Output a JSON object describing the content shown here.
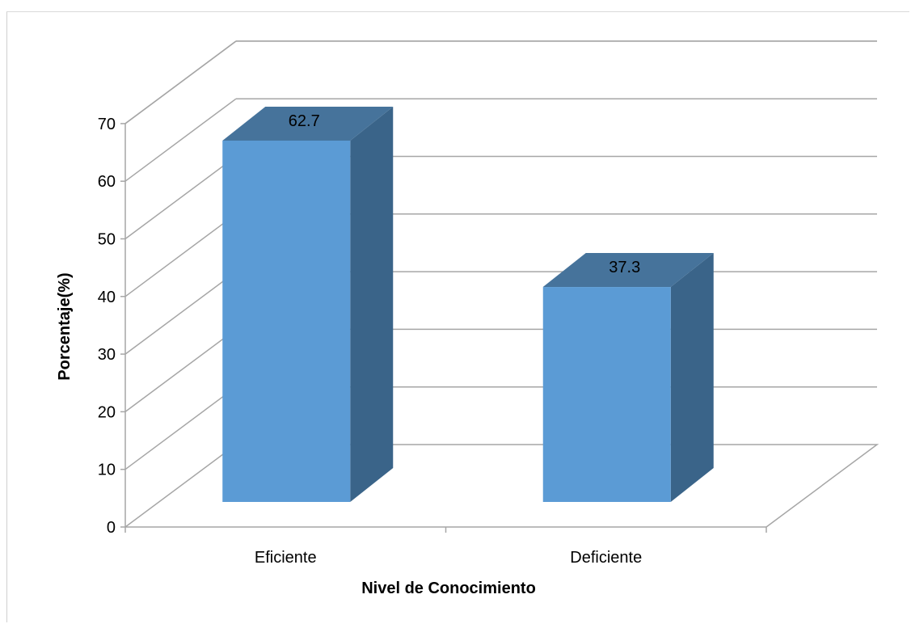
{
  "chart_data": {
    "type": "bar",
    "style": "3d-column",
    "categories": [
      "Eficiente",
      "Deficiente"
    ],
    "series": [
      {
        "values": [
          62.7,
          37.3
        ]
      }
    ],
    "data_labels": [
      "62.7",
      "37.3"
    ],
    "xlabel": "Nivel de Conocimiento",
    "ylabel": "Porcentaje(%)",
    "ylim": [
      0,
      70
    ],
    "yticks": [
      0,
      10,
      20,
      30,
      40,
      50,
      60,
      70
    ],
    "grid": true,
    "legend": "none",
    "colors": {
      "bar_front": "#5b9bd5",
      "bar_side": "#3a6489",
      "bar_top": "#46739b",
      "gridline": "#a6a6a6"
    }
  }
}
